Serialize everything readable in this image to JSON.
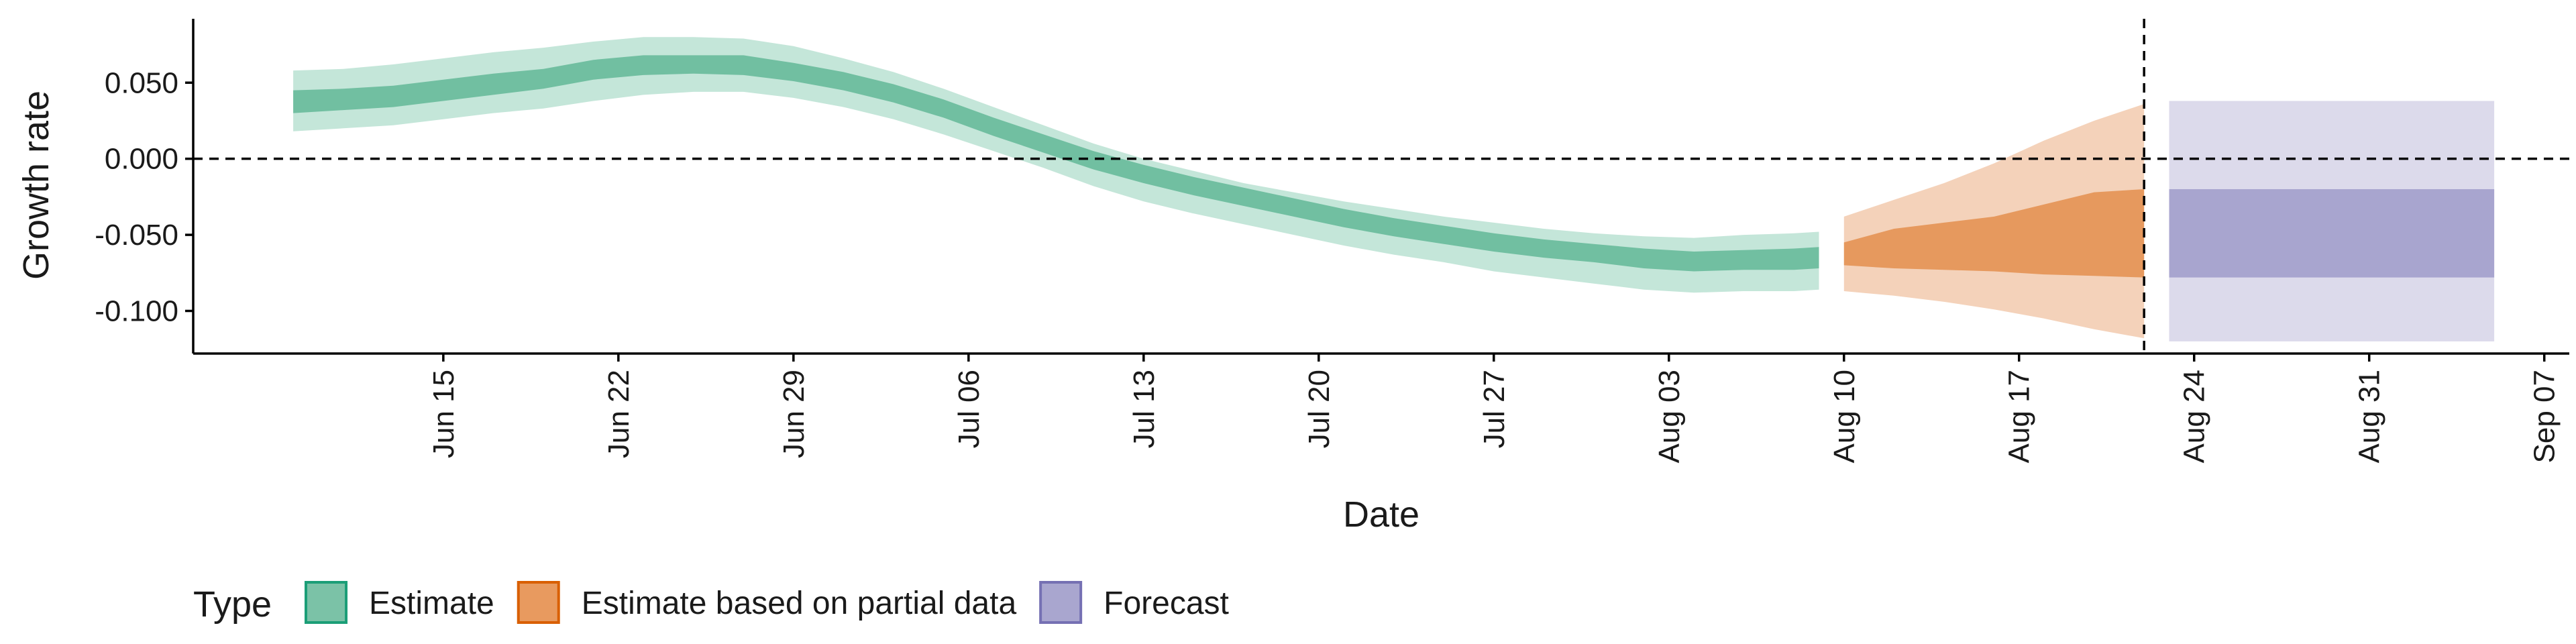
{
  "chart_data": {
    "type": "area",
    "xlabel": "Date",
    "ylabel": "Growth rate",
    "ylim": [
      -0.128,
      0.092
    ],
    "xlim": [
      "2020-06-05",
      "2020-09-08"
    ],
    "yticks": [
      0.05,
      0.0,
      -0.05,
      -0.1
    ],
    "ytick_labels": [
      "0.050",
      "0.000",
      "-0.050",
      "-0.100"
    ],
    "xticks": [
      "2020-06-15",
      "2020-06-22",
      "2020-06-29",
      "2020-07-06",
      "2020-07-13",
      "2020-07-20",
      "2020-07-27",
      "2020-08-03",
      "2020-08-10",
      "2020-08-17",
      "2020-08-24",
      "2020-08-31",
      "2020-09-07"
    ],
    "xtick_labels": [
      "Jun 15",
      "Jun 22",
      "Jun 29",
      "Jul 06",
      "Jul 13",
      "Jul 20",
      "Jul 27",
      "Aug 03",
      "Aug 10",
      "Aug 17",
      "Aug 24",
      "Aug 31",
      "Sep 07"
    ],
    "reference_lines": {
      "horizontal_y": 0.0,
      "vertical_x": "2020-08-22"
    },
    "legend": {
      "title": "Type",
      "position": "bottom",
      "entries": [
        {
          "label": "Estimate",
          "fill": "#7bc2a7",
          "border": "#1b9e77"
        },
        {
          "label": "Estimate based on partial data",
          "fill": "#e89a5f",
          "border": "#d95f02"
        },
        {
          "label": "Forecast",
          "fill": "#a9a6cf",
          "border": "#7570b3"
        }
      ]
    },
    "series": [
      {
        "name": "Estimate",
        "colors": {
          "outer": "#c4e6d9",
          "inner": "#71bfa1"
        },
        "x": [
          "2020-06-09",
          "2020-06-11",
          "2020-06-13",
          "2020-06-15",
          "2020-06-17",
          "2020-06-19",
          "2020-06-21",
          "2020-06-23",
          "2020-06-25",
          "2020-06-27",
          "2020-06-29",
          "2020-07-01",
          "2020-07-03",
          "2020-07-05",
          "2020-07-07",
          "2020-07-09",
          "2020-07-11",
          "2020-07-13",
          "2020-07-15",
          "2020-07-17",
          "2020-07-19",
          "2020-07-21",
          "2020-07-23",
          "2020-07-25",
          "2020-07-27",
          "2020-07-29",
          "2020-07-31",
          "2020-08-02",
          "2020-08-04",
          "2020-08-06",
          "2020-08-08",
          "2020-08-09"
        ],
        "lower_90": [
          0.018,
          0.02,
          0.022,
          0.026,
          0.03,
          0.033,
          0.038,
          0.042,
          0.044,
          0.044,
          0.04,
          0.034,
          0.026,
          0.016,
          0.005,
          -0.006,
          -0.018,
          -0.028,
          -0.036,
          -0.043,
          -0.05,
          -0.057,
          -0.063,
          -0.068,
          -0.074,
          -0.078,
          -0.082,
          -0.086,
          -0.088,
          -0.087,
          -0.087,
          -0.086
        ],
        "upper_90": [
          0.058,
          0.059,
          0.062,
          0.066,
          0.07,
          0.073,
          0.077,
          0.08,
          0.08,
          0.079,
          0.074,
          0.066,
          0.057,
          0.046,
          0.034,
          0.022,
          0.01,
          0.0,
          -0.008,
          -0.016,
          -0.022,
          -0.028,
          -0.033,
          -0.038,
          -0.042,
          -0.046,
          -0.049,
          -0.051,
          -0.052,
          -0.05,
          -0.049,
          -0.048
        ],
        "lower_50": [
          0.03,
          0.032,
          0.034,
          0.038,
          0.042,
          0.046,
          0.052,
          0.055,
          0.056,
          0.055,
          0.051,
          0.045,
          0.037,
          0.027,
          0.015,
          0.004,
          -0.007,
          -0.016,
          -0.024,
          -0.031,
          -0.038,
          -0.045,
          -0.051,
          -0.056,
          -0.061,
          -0.065,
          -0.068,
          -0.072,
          -0.074,
          -0.073,
          -0.073,
          -0.072
        ],
        "upper_50": [
          0.045,
          0.046,
          0.048,
          0.052,
          0.056,
          0.059,
          0.065,
          0.068,
          0.068,
          0.068,
          0.063,
          0.057,
          0.049,
          0.039,
          0.027,
          0.016,
          0.005,
          -0.004,
          -0.012,
          -0.019,
          -0.026,
          -0.033,
          -0.039,
          -0.044,
          -0.049,
          -0.053,
          -0.056,
          -0.059,
          -0.061,
          -0.06,
          -0.059,
          -0.058
        ]
      },
      {
        "name": "Estimate based on partial data",
        "colors": {
          "outer": "#f4d2ba",
          "inner": "#e6995e"
        },
        "x": [
          "2020-08-10",
          "2020-08-12",
          "2020-08-14",
          "2020-08-16",
          "2020-08-18",
          "2020-08-20",
          "2020-08-22"
        ],
        "lower_90": [
          -0.087,
          -0.09,
          -0.094,
          -0.099,
          -0.105,
          -0.112,
          -0.118
        ],
        "upper_90": [
          -0.038,
          -0.027,
          -0.016,
          -0.003,
          0.012,
          0.025,
          0.036
        ],
        "lower_50": [
          -0.07,
          -0.072,
          -0.073,
          -0.074,
          -0.076,
          -0.077,
          -0.078
        ],
        "upper_50": [
          -0.055,
          -0.046,
          -0.042,
          -0.038,
          -0.03,
          -0.022,
          -0.02
        ]
      },
      {
        "name": "Forecast",
        "colors": {
          "outer": "#dcdaeb",
          "inner": "#a8a5cf"
        },
        "x": [
          "2020-08-23",
          "2020-09-05"
        ],
        "lower_90": [
          -0.12,
          -0.12
        ],
        "upper_90": [
          0.038,
          0.038
        ],
        "lower_50": [
          -0.078,
          -0.078
        ],
        "upper_50": [
          -0.02,
          -0.02
        ]
      }
    ]
  }
}
